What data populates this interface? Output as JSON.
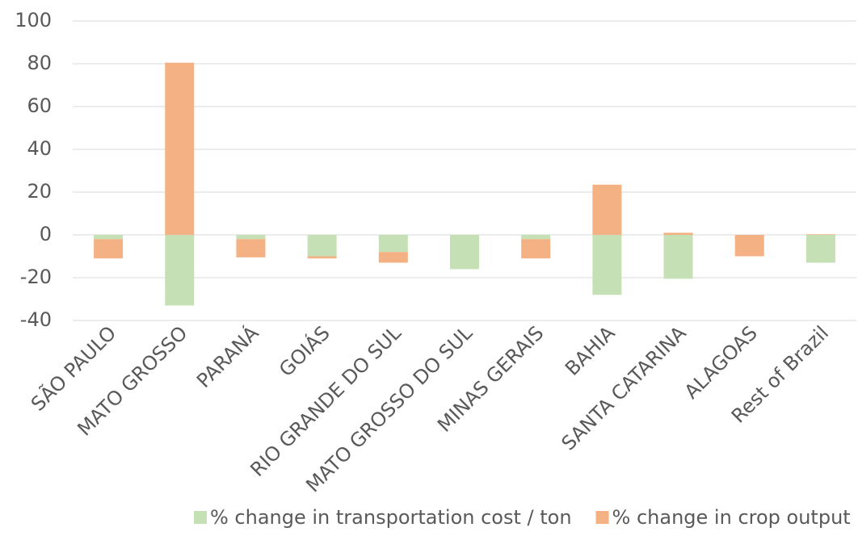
{
  "chart_data": {
    "type": "stacked_bar",
    "categories": [
      "SÃO PAULO",
      "MATO GROSSO",
      "PARANÁ",
      "GOIÁS",
      "RIO GRANDE DO SUL",
      "MATO GROSSO DO SUL",
      "MINAS GERAIS",
      "BAHIA",
      "SANTA CATARINA",
      "ALAGOAS",
      "Rest of Brazil"
    ],
    "series": [
      {
        "name": "% change in transportation cost / ton",
        "color": "#c5e0b4",
        "values": [
          -2,
          -33,
          -2,
          -10,
          -8,
          -16,
          -2,
          -28,
          -20.5,
          0,
          -13
        ]
      },
      {
        "name": "% change in crop output",
        "color": "#f4b183",
        "values": [
          -9,
          80.5,
          -8.5,
          -1,
          -5,
          0,
          -9,
          23.5,
          1,
          -10,
          0.3
        ]
      }
    ],
    "ylim": [
      -40,
      100
    ],
    "yticks": [
      -40,
      -20,
      0,
      20,
      40,
      60,
      80,
      100
    ],
    "grid": true,
    "legend": "bottom"
  }
}
